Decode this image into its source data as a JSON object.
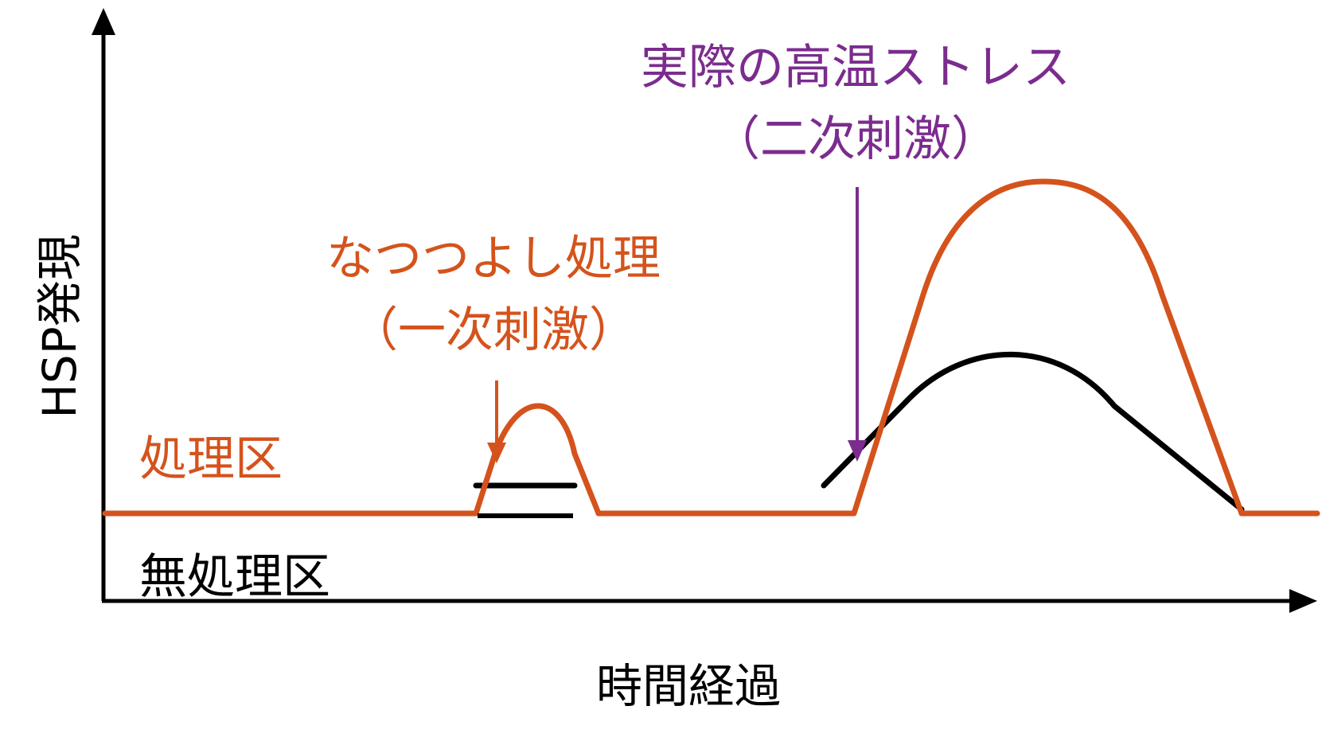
{
  "axes": {
    "y_label": "HSP発現",
    "x_label": "時間経過"
  },
  "legend": {
    "treated": "処理区",
    "untreated": "無処理区"
  },
  "annotations": {
    "primary": {
      "line1": "なつつよし処理",
      "line2": "（一次刺激）"
    },
    "secondary": {
      "line1": "実際の高温ストレス",
      "line2": "（二次刺激）"
    }
  },
  "colors": {
    "treated": "#D4531C",
    "untreated": "#000000",
    "secondary": "#7B2C8E",
    "axis": "#000000"
  }
}
